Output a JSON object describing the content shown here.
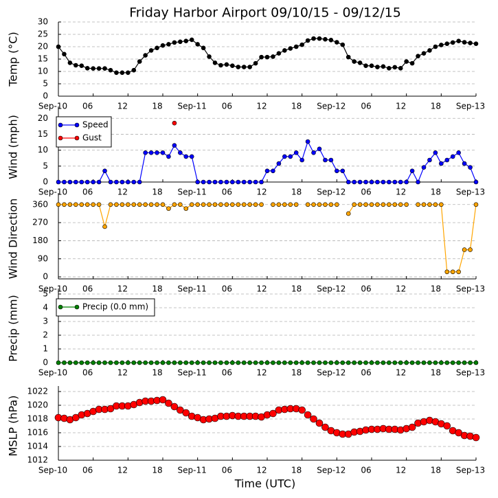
{
  "chart_data": [
    {
      "type": "line",
      "title": "Friday Harbor Airport 09/10/15 - 09/12/15",
      "ylabel": "Temp (°C)",
      "grid": true,
      "xlim": [
        0,
        72
      ],
      "xticks": [
        {
          "value": 0,
          "label": "Sep-10"
        },
        {
          "value": 6,
          "label": "06"
        },
        {
          "value": 12,
          "label": "12"
        },
        {
          "value": 18,
          "label": "18"
        },
        {
          "value": 24,
          "label": "Sep-11"
        },
        {
          "value": 30,
          "label": "06"
        },
        {
          "value": 36,
          "label": "12"
        },
        {
          "value": 42,
          "label": "18"
        },
        {
          "value": 48,
          "label": "Sep-12"
        },
        {
          "value": 54,
          "label": "06"
        },
        {
          "value": 60,
          "label": "12"
        },
        {
          "value": 66,
          "label": "18"
        },
        {
          "value": 72,
          "label": "Sep-13"
        }
      ],
      "ylim": [
        0,
        30
      ],
      "yticks": [
        0,
        5,
        10,
        15,
        20,
        25,
        30
      ],
      "x": [
        0,
        1,
        2,
        3,
        4,
        5,
        6,
        7,
        8,
        9,
        10,
        11,
        12,
        13,
        14,
        15,
        16,
        17,
        18,
        19,
        20,
        21,
        22,
        23,
        24,
        25,
        26,
        27,
        28,
        29,
        30,
        31,
        32,
        33,
        34,
        35,
        36,
        37,
        38,
        39,
        40,
        41,
        42,
        43,
        44,
        45,
        46,
        47,
        48,
        49,
        50,
        51,
        52,
        53,
        54,
        55,
        56,
        57,
        58,
        59,
        60,
        61,
        62,
        63,
        64,
        65,
        66,
        67,
        68,
        69,
        70,
        71,
        72
      ],
      "series": [
        {
          "color": "#000000",
          "marker_size": 3,
          "values": [
            20,
            17,
            13.5,
            12.5,
            12.3,
            11.3,
            11.2,
            11.2,
            11.2,
            10.5,
            9.5,
            9.5,
            9.5,
            10.5,
            14,
            16.5,
            18.5,
            19.5,
            20.5,
            21,
            21.7,
            22,
            22.3,
            22.8,
            21,
            19.5,
            16,
            13.5,
            12.5,
            12.8,
            12.3,
            11.8,
            11.8,
            11.8,
            13.3,
            15.8,
            15.8,
            16,
            17.3,
            18.5,
            19.3,
            20,
            20.8,
            22.5,
            23.3,
            23.3,
            23,
            22.7,
            21.8,
            20.8,
            15.8,
            14,
            13.5,
            12.3,
            12.3,
            11.8,
            12,
            11.3,
            11.7,
            11.3,
            14,
            13.3,
            16.2,
            17.3,
            18.5,
            20,
            20.7,
            21.2,
            21.7,
            22.3,
            21.8,
            21.5,
            21.2
          ]
        }
      ]
    },
    {
      "type": "line",
      "ylabel": "Wind (mph)",
      "grid": true,
      "legend": "upper left",
      "xlim": [
        0,
        72
      ],
      "xticks": [
        {
          "value": 0,
          "label": "Sep-10"
        },
        {
          "value": 6,
          "label": "06"
        },
        {
          "value": 12,
          "label": "12"
        },
        {
          "value": 18,
          "label": "18"
        },
        {
          "value": 24,
          "label": "Sep-11"
        },
        {
          "value": 30,
          "label": "06"
        },
        {
          "value": 36,
          "label": "12"
        },
        {
          "value": 42,
          "label": "18"
        },
        {
          "value": 48,
          "label": "Sep-12"
        },
        {
          "value": 54,
          "label": "06"
        },
        {
          "value": 60,
          "label": "12"
        },
        {
          "value": 66,
          "label": "18"
        },
        {
          "value": 72,
          "label": "Sep-13"
        }
      ],
      "ylim": [
        0,
        22
      ],
      "yticks": [
        0,
        5,
        10,
        15,
        20
      ],
      "x": [
        0,
        1,
        2,
        3,
        4,
        5,
        6,
        7,
        8,
        9,
        10,
        11,
        12,
        13,
        14,
        15,
        16,
        17,
        18,
        19,
        20,
        21,
        22,
        23,
        24,
        25,
        26,
        27,
        28,
        29,
        30,
        31,
        32,
        33,
        34,
        35,
        36,
        37,
        38,
        39,
        40,
        41,
        42,
        43,
        44,
        45,
        46,
        47,
        48,
        49,
        50,
        51,
        52,
        53,
        54,
        55,
        56,
        57,
        58,
        59,
        60,
        61,
        62,
        63,
        64,
        65,
        66,
        67,
        68,
        69,
        70,
        71,
        72
      ],
      "series": [
        {
          "name": "Speed",
          "color": "#0000ff",
          "marker_size": 3,
          "values": [
            0,
            0,
            0,
            0,
            0,
            0,
            0,
            0,
            3.5,
            0,
            0,
            0,
            0,
            0,
            0,
            9.2,
            9.2,
            9.2,
            9.2,
            8,
            11.5,
            9.2,
            8,
            8,
            0,
            0,
            0,
            0,
            0,
            0,
            0,
            0,
            0,
            0,
            0,
            0,
            3.5,
            3.5,
            5.8,
            8,
            8,
            9.2,
            6.9,
            12.7,
            9.2,
            10.4,
            6.9,
            6.9,
            3.5,
            3.5,
            0,
            0,
            0,
            0,
            0,
            0,
            0,
            0,
            0,
            0,
            0,
            3.5,
            0,
            4.6,
            6.9,
            9.2,
            5.8,
            6.9,
            8,
            9.2,
            5.8,
            4.6,
            0
          ]
        },
        {
          "name": "Gust",
          "color": "#ff0000",
          "marker_size": 3,
          "values": [
            null,
            null,
            null,
            null,
            null,
            null,
            null,
            null,
            null,
            null,
            null,
            null,
            null,
            null,
            null,
            null,
            null,
            null,
            null,
            null,
            18.5,
            null,
            null,
            null,
            null,
            null,
            null,
            null,
            null,
            null,
            null,
            null,
            null,
            null,
            null,
            null,
            null,
            null,
            null,
            null,
            null,
            null,
            null,
            null,
            null,
            null,
            null,
            null,
            null,
            null,
            null,
            null,
            null,
            null,
            null,
            null,
            null,
            null,
            null,
            null,
            null,
            null,
            null,
            null,
            null,
            null,
            null,
            null,
            null,
            null,
            null,
            null,
            null
          ]
        }
      ]
    },
    {
      "type": "line",
      "ylabel": "Wind Direction",
      "grid": true,
      "xlim": [
        0,
        72
      ],
      "xticks": [
        {
          "value": 0,
          "label": "Sep-10"
        },
        {
          "value": 6,
          "label": "06"
        },
        {
          "value": 12,
          "label": "12"
        },
        {
          "value": 18,
          "label": "18"
        },
        {
          "value": 24,
          "label": "Sep-11"
        },
        {
          "value": 30,
          "label": "06"
        },
        {
          "value": 36,
          "label": "12"
        },
        {
          "value": 42,
          "label": "18"
        },
        {
          "value": 48,
          "label": "Sep-12"
        },
        {
          "value": 54,
          "label": "06"
        },
        {
          "value": 60,
          "label": "12"
        },
        {
          "value": 66,
          "label": "18"
        },
        {
          "value": 72,
          "label": "Sep-13"
        }
      ],
      "ylim": [
        -10,
        390
      ],
      "yticks": [
        0,
        90,
        180,
        270,
        360
      ],
      "x": [
        0,
        1,
        2,
        3,
        4,
        5,
        6,
        7,
        8,
        9,
        10,
        11,
        12,
        13,
        14,
        15,
        16,
        17,
        18,
        19,
        20,
        21,
        22,
        23,
        24,
        25,
        26,
        27,
        28,
        29,
        30,
        31,
        32,
        33,
        34,
        35,
        36,
        37,
        38,
        39,
        40,
        41,
        42,
        43,
        44,
        45,
        46,
        47,
        48,
        49,
        50,
        51,
        52,
        53,
        54,
        55,
        56,
        57,
        58,
        59,
        60,
        61,
        62,
        63,
        64,
        65,
        66,
        67,
        68,
        69,
        70,
        71,
        72
      ],
      "series": [
        {
          "color": "#ffa500",
          "marker_size": 3,
          "values": [
            360,
            360,
            360,
            360,
            360,
            360,
            360,
            360,
            250,
            360,
            360,
            360,
            360,
            360,
            360,
            360,
            360,
            360,
            360,
            340,
            360,
            360,
            340,
            360,
            360,
            360,
            360,
            360,
            360,
            360,
            360,
            360,
            360,
            360,
            360,
            360,
            null,
            360,
            360,
            360,
            360,
            360,
            null,
            360,
            360,
            360,
            360,
            360,
            360,
            null,
            315,
            360,
            360,
            360,
            360,
            360,
            360,
            360,
            360,
            360,
            360,
            null,
            360,
            360,
            360,
            360,
            360,
            25,
            25,
            25,
            135,
            135,
            360
          ]
        }
      ]
    },
    {
      "type": "line",
      "ylabel": "Precip (mm)",
      "grid": true,
      "legend": "upper left",
      "xlim": [
        0,
        72
      ],
      "xticks": [
        {
          "value": 0,
          "label": "Sep-10"
        },
        {
          "value": 6,
          "label": "06"
        },
        {
          "value": 12,
          "label": "12"
        },
        {
          "value": 18,
          "label": "18"
        },
        {
          "value": 24,
          "label": "Sep-11"
        },
        {
          "value": 30,
          "label": "06"
        },
        {
          "value": 36,
          "label": "12"
        },
        {
          "value": 42,
          "label": "18"
        },
        {
          "value": 48,
          "label": "Sep-12"
        },
        {
          "value": 54,
          "label": "06"
        },
        {
          "value": 60,
          "label": "12"
        },
        {
          "value": 66,
          "label": "18"
        },
        {
          "value": 72,
          "label": "Sep-13"
        }
      ],
      "ylim": [
        0,
        5
      ],
      "yticks": [
        0,
        1,
        2,
        3,
        4,
        5
      ],
      "x": [
        0,
        1,
        2,
        3,
        4,
        5,
        6,
        7,
        8,
        9,
        10,
        11,
        12,
        13,
        14,
        15,
        16,
        17,
        18,
        19,
        20,
        21,
        22,
        23,
        24,
        25,
        26,
        27,
        28,
        29,
        30,
        31,
        32,
        33,
        34,
        35,
        36,
        37,
        38,
        39,
        40,
        41,
        42,
        43,
        44,
        45,
        46,
        47,
        48,
        49,
        50,
        51,
        52,
        53,
        54,
        55,
        56,
        57,
        58,
        59,
        60,
        61,
        62,
        63,
        64,
        65,
        66,
        67,
        68,
        69,
        70,
        71,
        72
      ],
      "series": [
        {
          "name": "Precip (0.0 mm)",
          "color": "#008000",
          "marker_size": 3,
          "values": [
            0,
            0,
            0,
            0,
            0,
            0,
            0,
            0,
            0,
            0,
            0,
            0,
            0,
            0,
            0,
            0,
            0,
            0,
            0,
            0,
            0,
            0,
            0,
            0,
            0,
            0,
            0,
            0,
            0,
            0,
            0,
            0,
            0,
            0,
            0,
            0,
            0,
            0,
            0,
            0,
            0,
            0,
            0,
            0,
            0,
            0,
            0,
            0,
            0,
            0,
            0,
            0,
            0,
            0,
            0,
            0,
            0,
            0,
            0,
            0,
            0,
            0,
            0,
            0,
            0,
            0,
            0,
            0,
            0,
            0,
            0,
            0,
            0
          ]
        }
      ]
    },
    {
      "type": "line",
      "ylabel": "MSLP (hPa)",
      "xlabel": "Time (UTC)",
      "grid": true,
      "xlim": [
        0,
        72
      ],
      "xticks": [
        {
          "value": 0,
          "label": "Sep-10"
        },
        {
          "value": 6,
          "label": "06"
        },
        {
          "value": 12,
          "label": "12"
        },
        {
          "value": 18,
          "label": "18"
        },
        {
          "value": 24,
          "label": "Sep-11"
        },
        {
          "value": 30,
          "label": "06"
        },
        {
          "value": 36,
          "label": "12"
        },
        {
          "value": 42,
          "label": "18"
        },
        {
          "value": 48,
          "label": "Sep-12"
        },
        {
          "value": 54,
          "label": "06"
        },
        {
          "value": 60,
          "label": "12"
        },
        {
          "value": 66,
          "label": "18"
        },
        {
          "value": 72,
          "label": "Sep-13"
        }
      ],
      "ylim": [
        1012,
        1022
      ],
      "yticks": [
        1012,
        1014,
        1016,
        1018,
        1020,
        1022
      ],
      "x": [
        0,
        1,
        2,
        3,
        4,
        5,
        6,
        7,
        8,
        9,
        10,
        11,
        12,
        13,
        14,
        15,
        16,
        17,
        18,
        19,
        20,
        21,
        22,
        23,
        24,
        25,
        26,
        27,
        28,
        29,
        30,
        31,
        32,
        33,
        34,
        35,
        36,
        37,
        38,
        39,
        40,
        41,
        42,
        43,
        44,
        45,
        46,
        47,
        48,
        49,
        50,
        51,
        52,
        53,
        54,
        55,
        56,
        57,
        58,
        59,
        60,
        61,
        62,
        63,
        64,
        65,
        66,
        67,
        68,
        69,
        70,
        71,
        72
      ],
      "series": [
        {
          "color": "#ff0000",
          "marker_size": 5,
          "linestyle": "none",
          "values": [
            1018.2,
            1018.1,
            1017.9,
            1018.2,
            1018.6,
            1018.8,
            1019.1,
            1019.4,
            1019.4,
            1019.5,
            1019.9,
            1019.9,
            1019.9,
            1020.1,
            1020.4,
            1020.6,
            1020.6,
            1020.7,
            1020.8,
            1020.3,
            1019.8,
            1019.3,
            1018.9,
            1018.4,
            1018.2,
            1017.9,
            1018.0,
            1018.1,
            1018.4,
            1018.4,
            1018.5,
            1018.4,
            1018.4,
            1018.4,
            1018.4,
            1018.3,
            1018.6,
            1018.8,
            1019.3,
            1019.4,
            1019.5,
            1019.5,
            1019.3,
            1018.6,
            1018.0,
            1017.4,
            1016.8,
            1016.3,
            1016.0,
            1015.8,
            1015.8,
            1016.1,
            1016.2,
            1016.4,
            1016.5,
            1016.5,
            1016.6,
            1016.5,
            1016.5,
            1016.4,
            1016.6,
            1016.8,
            1017.4,
            1017.6,
            1017.8,
            1017.6,
            1017.3,
            1017.0,
            1016.3,
            1016.0,
            1015.6,
            1015.5,
            1015.3
          ]
        }
      ]
    }
  ]
}
